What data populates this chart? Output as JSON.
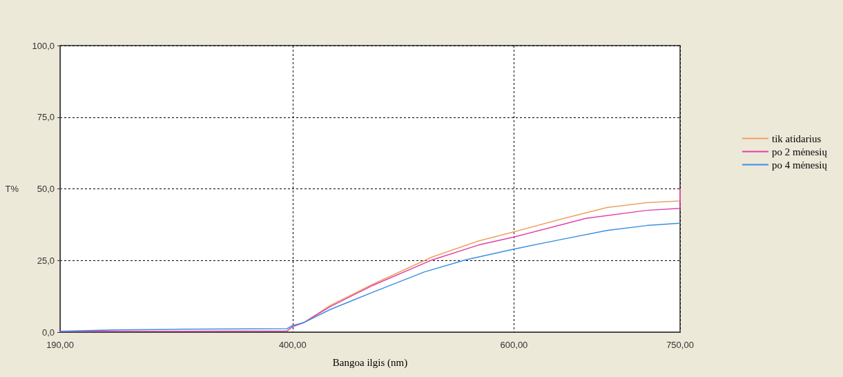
{
  "chart_data": {
    "type": "line",
    "xlabel": "Bangoa ilgis (nm)",
    "ylabel": "T%",
    "xlim": [
      190,
      750
    ],
    "xticks": [
      {
        "value": 190,
        "label": "190,00"
      },
      {
        "value": 400,
        "label": "400,00"
      },
      {
        "value": 600,
        "label": "600,00"
      },
      {
        "value": 750,
        "label": "750,00"
      }
    ],
    "ylim": [
      0,
      100
    ],
    "yticks": [
      {
        "value": 0,
        "label": "0,0"
      },
      {
        "value": 25,
        "label": "25,0"
      },
      {
        "value": 50,
        "label": "50,0"
      },
      {
        "value": 75,
        "label": "75,0"
      },
      {
        "value": 100,
        "label": "100,0"
      }
    ],
    "grid": true,
    "legend": "right",
    "marker": "none",
    "line_style": "solid",
    "series": [
      {
        "name": "tik atidarius",
        "color": "#f0a060",
        "x": [
          400,
          410,
          434,
          473,
          526,
          568,
          600,
          641,
          684,
          720,
          750,
          750
        ],
        "values": [
          1.9,
          3.3,
          9.3,
          16.8,
          26.2,
          31.8,
          35.0,
          39.3,
          43.5,
          45.2,
          45.8,
          50
        ]
      },
      {
        "name": "po 2 mėnesių",
        "color": "#e040a8",
        "x": [
          190,
          300,
          395,
          400,
          410,
          434,
          473,
          526,
          568,
          600,
          665,
          720,
          750,
          750
        ],
        "values": [
          0.3,
          0.3,
          0.4,
          1.9,
          3.3,
          8.9,
          16.4,
          25.2,
          30.4,
          33.2,
          39.7,
          42.5,
          43.2,
          50
        ]
      },
      {
        "name": "po 4 mėnesių",
        "color": "#3a8fe0",
        "x": [
          190,
          240,
          300,
          395,
          400,
          410,
          434,
          473,
          519,
          556,
          600,
          641,
          684,
          720,
          750
        ],
        "values": [
          0.3,
          0.8,
          1.0,
          1.2,
          2.3,
          3.3,
          7.9,
          14.0,
          21.0,
          25.2,
          29.0,
          32.2,
          35.5,
          37.2,
          38.0
        ]
      }
    ]
  }
}
